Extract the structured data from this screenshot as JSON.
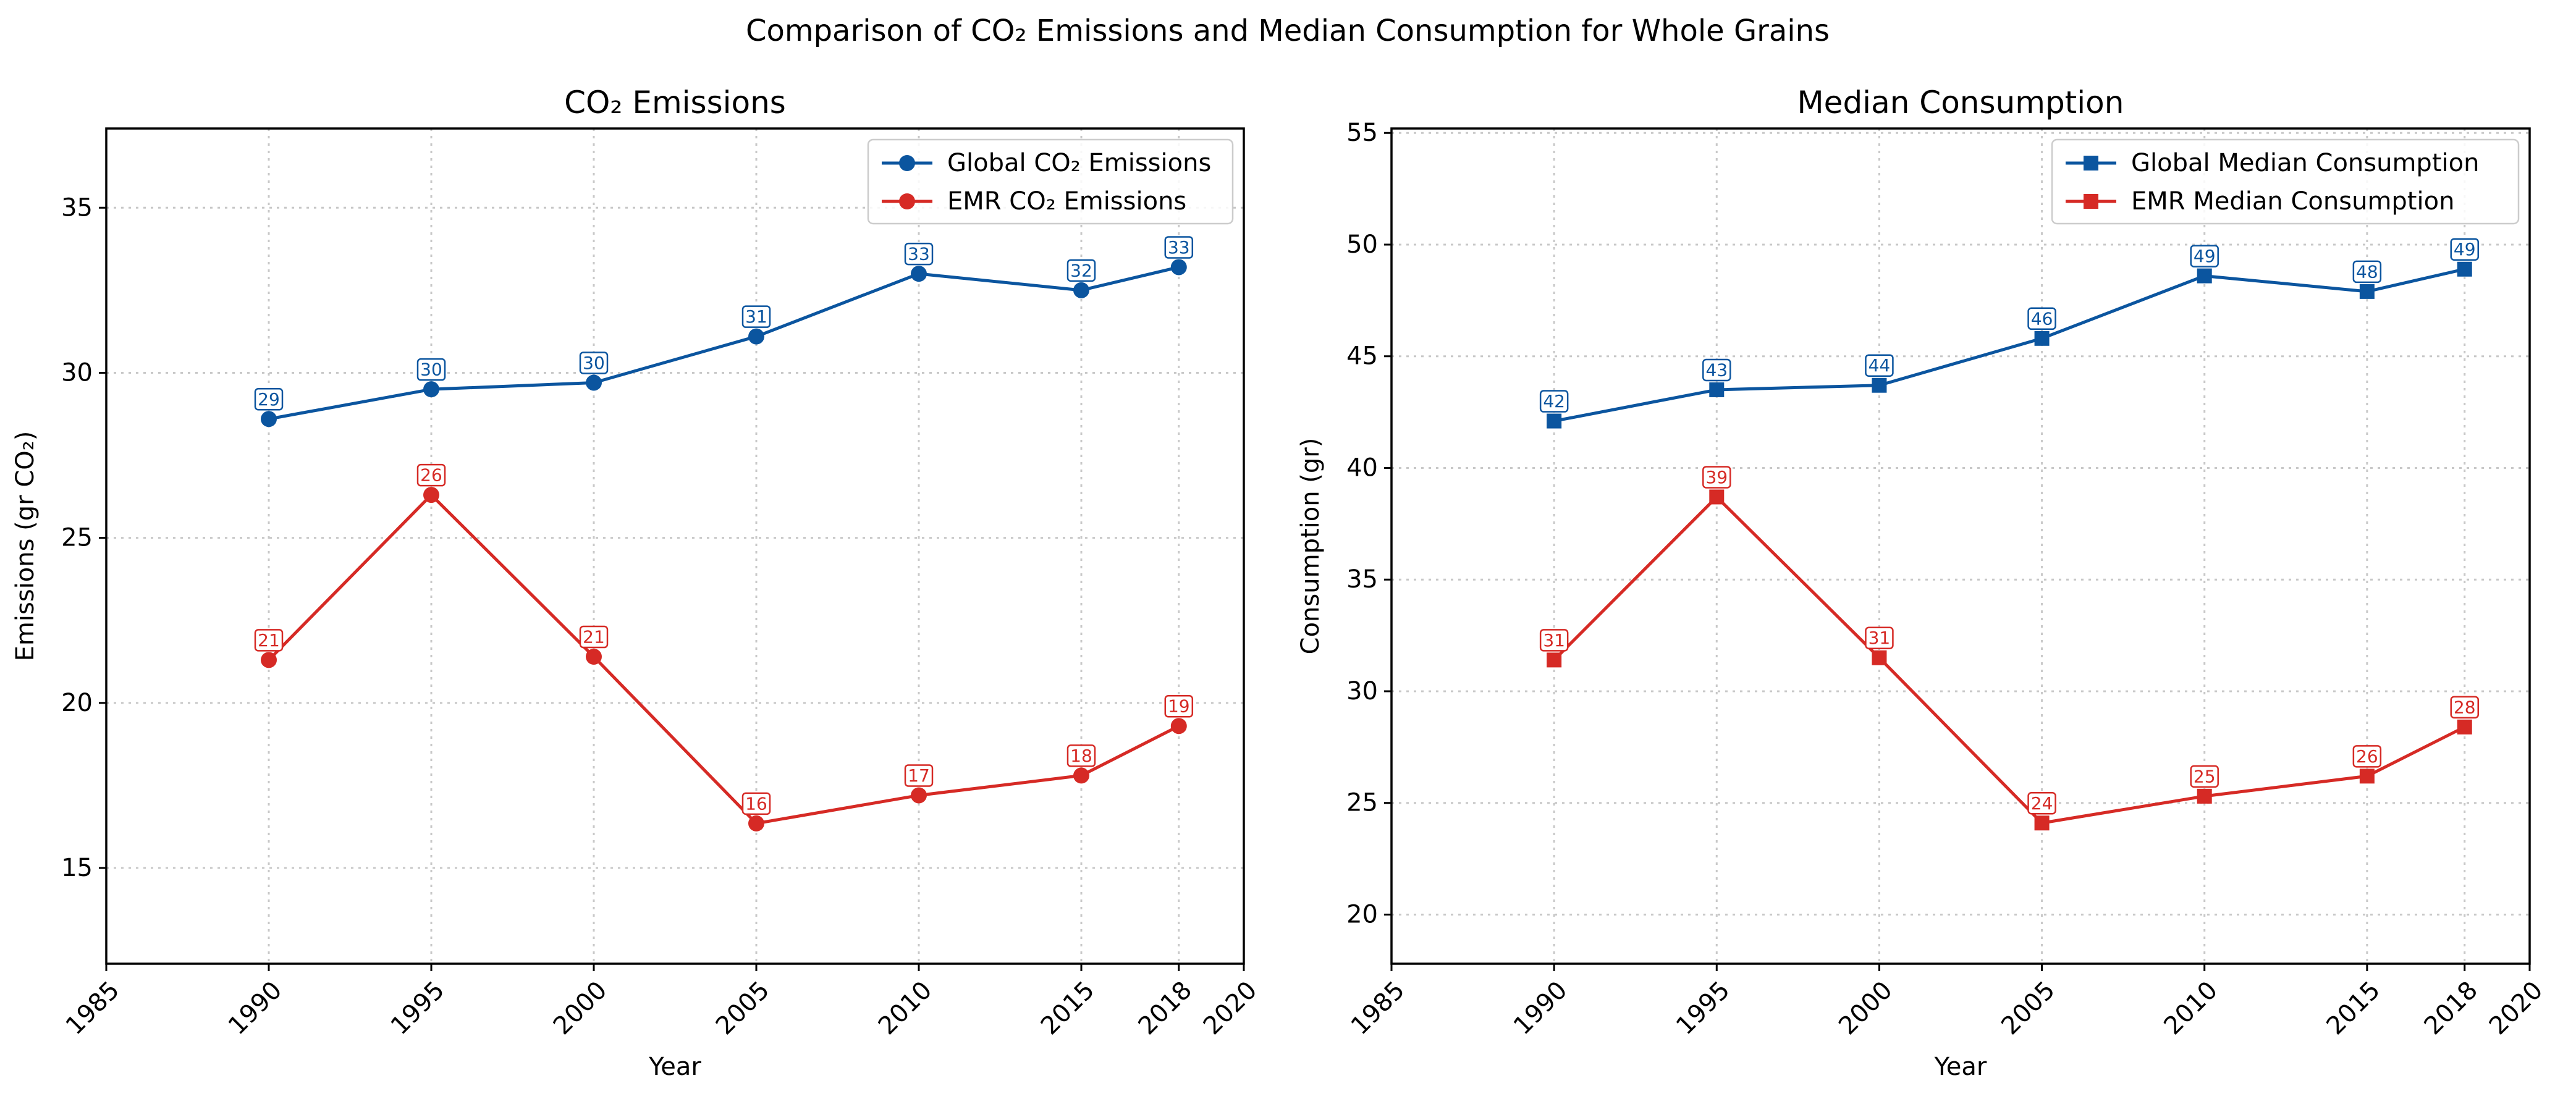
{
  "figure": {
    "title": "Comparison of CO₂ Emissions and Median Consumption for Whole Grains"
  },
  "colors": {
    "global": "#0b559f",
    "emr": "#d62a25"
  },
  "chart_data": [
    {
      "type": "line",
      "title": "CO₂ Emissions",
      "xlabel": "Year",
      "ylabel": "Emissions (gr CO₂)",
      "xlim": [
        1985,
        2020
      ],
      "ylim": [
        12.1,
        37.4
      ],
      "xticks": [
        1985,
        1990,
        1995,
        2000,
        2005,
        2010,
        2015,
        2018,
        2020
      ],
      "yticks": [
        15,
        20,
        25,
        30,
        35
      ],
      "grid": true,
      "legend_position": "upper right",
      "x": [
        1990,
        1995,
        2000,
        2005,
        2010,
        2015,
        2018
      ],
      "series": [
        {
          "name": "Global CO₂ Emissions",
          "marker": "circle",
          "color": "#0b559f",
          "values": [
            28.6,
            29.5,
            29.7,
            31.1,
            33.0,
            32.5,
            33.2
          ],
          "labels": [
            "29",
            "30",
            "30",
            "31",
            "33",
            "32",
            "33"
          ]
        },
        {
          "name": "EMR CO₂ Emissions",
          "marker": "circle",
          "color": "#d62a25",
          "values": [
            21.3,
            26.3,
            21.4,
            16.35,
            17.2,
            17.8,
            19.3
          ],
          "labels": [
            "21",
            "26",
            "21",
            "16",
            "17",
            "18",
            "19"
          ]
        }
      ]
    },
    {
      "type": "line",
      "title": "Median Consumption",
      "xlabel": "Year",
      "ylabel": "Consumption (gr)",
      "xlim": [
        1985,
        2020
      ],
      "ylim": [
        17.8,
        55.2
      ],
      "xticks": [
        1985,
        1990,
        1995,
        2000,
        2005,
        2010,
        2015,
        2018,
        2020
      ],
      "yticks": [
        20,
        25,
        30,
        35,
        40,
        45,
        50,
        55
      ],
      "grid": true,
      "legend_position": "upper right",
      "x": [
        1990,
        1995,
        2000,
        2005,
        2010,
        2015,
        2018
      ],
      "series": [
        {
          "name": "Global Median Consumption",
          "marker": "square",
          "color": "#0b559f",
          "values": [
            42.1,
            43.5,
            43.7,
            45.8,
            48.6,
            47.9,
            48.9
          ],
          "labels": [
            "42",
            "43",
            "44",
            "46",
            "49",
            "48",
            "49"
          ]
        },
        {
          "name": "EMR Median Consumption",
          "marker": "square",
          "color": "#d62a25",
          "values": [
            31.4,
            38.7,
            31.5,
            24.1,
            25.3,
            26.2,
            28.4
          ],
          "labels": [
            "31",
            "39",
            "31",
            "24",
            "25",
            "26",
            "28"
          ]
        }
      ]
    }
  ]
}
